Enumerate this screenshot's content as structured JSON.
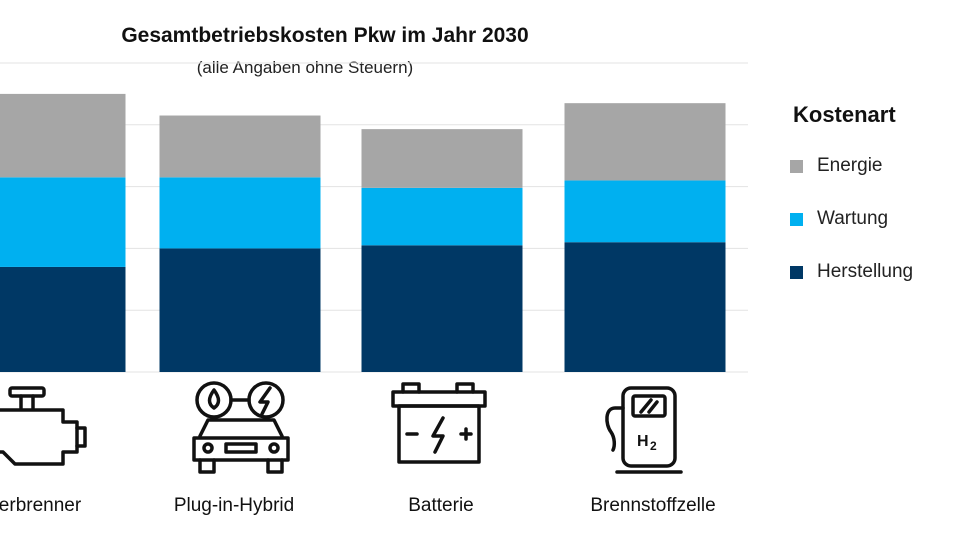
{
  "chart_data": {
    "type": "bar",
    "stacked": true,
    "title": "Gesamtbetriebskosten Pkw im Jahr 2030",
    "subtitle": "(alle Angaben ohne Steuern)",
    "categories": [
      "Verbrenner",
      "Plug-in-Hybrid",
      "Batterie",
      "Brennstoffzelle"
    ],
    "visible_category_labels": [
      "erbrenner",
      "Plug-in-Hybrid",
      "Batterie",
      "Brennstoffzelle"
    ],
    "series": [
      {
        "name": "Herstellung",
        "values": [
          1.7,
          2.0,
          2.05,
          2.1
        ]
      },
      {
        "name": "Wartung",
        "values": [
          1.45,
          1.15,
          0.93,
          1.0
        ]
      },
      {
        "name": "Energie",
        "values": [
          1.35,
          1.0,
          0.95,
          1.25
        ]
      }
    ],
    "ylim": [
      0,
      5
    ],
    "grid_step": 1,
    "xlabel": "",
    "ylabel": "",
    "legend_title": "Kostenart",
    "legend_position": "right",
    "grid": true
  },
  "legend": {
    "title": "Kostenart",
    "items": [
      {
        "label": "Energie",
        "color": "#a6a6a6"
      },
      {
        "label": "Wartung",
        "color": "#00b0f0"
      },
      {
        "label": "Herstellung",
        "color": "#003865"
      }
    ]
  },
  "colors": {
    "Herstellung": "#003865",
    "Wartung": "#00b0f0",
    "Energie": "#a6a6a6",
    "grid": "#e3e3e3"
  },
  "icons": [
    "engine-icon",
    "hybrid-car-icon",
    "car-battery-icon",
    "hydrogen-pump-icon"
  ],
  "icon_text": {
    "battery_symbol": "- ϟ +",
    "hydrogen": "H2"
  }
}
